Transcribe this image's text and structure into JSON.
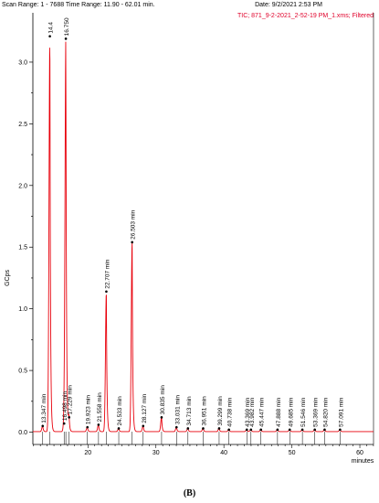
{
  "header": {
    "scan_range": "Scan Range: 1 - 7688 Time Range: 11.90 - 62.01 min.",
    "date": "Date: 9/2/2021 2:53 PM",
    "tic": "TIC;  871_9-2-2021_2-52-19 PM_1.xms;  Filtered"
  },
  "caption": "(B)",
  "colors": {
    "trace": "#e8000b",
    "axis": "#000000",
    "label": "#000000"
  },
  "chart_data": {
    "type": "line",
    "ylabel": "GCps",
    "xlabel": "minutes",
    "xlim": [
      11.9,
      62.01
    ],
    "ylim": [
      -0.1,
      3.4
    ],
    "xticks": [
      20,
      30,
      40,
      50,
      60
    ],
    "yticks": [
      0.0,
      0.25,
      0.5,
      0.75,
      1.0,
      1.25,
      1.5,
      1.75,
      2.0,
      2.25,
      2.5,
      2.75,
      3.0
    ],
    "ytick_labels": [
      "0.0",
      "",
      "0.5",
      "",
      "1.0",
      "",
      "1.5",
      "",
      "2.0",
      "",
      "2.5",
      "",
      "3.0"
    ],
    "peaks": [
      {
        "rt": 13.347,
        "label": "13.347 min",
        "height": 0.05
      },
      {
        "rt": 14.4,
        "label": "14.4",
        "height": 3.21
      },
      {
        "rt": 16.498,
        "label": "16.498 min",
        "height": 0.07
      },
      {
        "rt": 16.75,
        "label": "16.750",
        "height": 3.19
      },
      {
        "rt": 17.229,
        "label": "17.229 min",
        "height": 0.12
      },
      {
        "rt": 19.923,
        "label": "19.923 min",
        "height": 0.04
      },
      {
        "rt": 21.558,
        "label": "21.558 min",
        "height": 0.06
      },
      {
        "rt": 22.707,
        "label": "22.707 min",
        "height": 1.14
      },
      {
        "rt": 24.533,
        "label": "24.533 min",
        "height": 0.03
      },
      {
        "rt": 26.503,
        "label": "26.503 min",
        "height": 1.54
      },
      {
        "rt": 28.127,
        "label": "28.127 min",
        "height": 0.05
      },
      {
        "rt": 30.835,
        "label": "30.835 min",
        "height": 0.12
      },
      {
        "rt": 33.031,
        "label": "33.031 min",
        "height": 0.04
      },
      {
        "rt": 34.713,
        "label": "34.713 min",
        "height": 0.03
      },
      {
        "rt": 36.951,
        "label": "36.951 min",
        "height": 0.03
      },
      {
        "rt": 39.299,
        "label": "39.299 min",
        "height": 0.03
      },
      {
        "rt": 40.738,
        "label": "40.738 min",
        "height": 0.02
      },
      {
        "rt": 43.369,
        "label": "43.369 min",
        "height": 0.02
      },
      {
        "rt": 43.982,
        "label": "43.982 min",
        "height": 0.02
      },
      {
        "rt": 45.447,
        "label": "45.447 min",
        "height": 0.02
      },
      {
        "rt": 47.888,
        "label": "47.888 min",
        "height": 0.02
      },
      {
        "rt": 49.685,
        "label": "49.685 min",
        "height": 0.02
      },
      {
        "rt": 51.546,
        "label": "51.546 min",
        "height": 0.02
      },
      {
        "rt": 53.369,
        "label": "53.369 min",
        "height": 0.02
      },
      {
        "rt": 54.82,
        "label": "54.820 min",
        "height": 0.02
      },
      {
        "rt": 57.091,
        "label": "57.091 min",
        "height": 0.02
      }
    ]
  }
}
